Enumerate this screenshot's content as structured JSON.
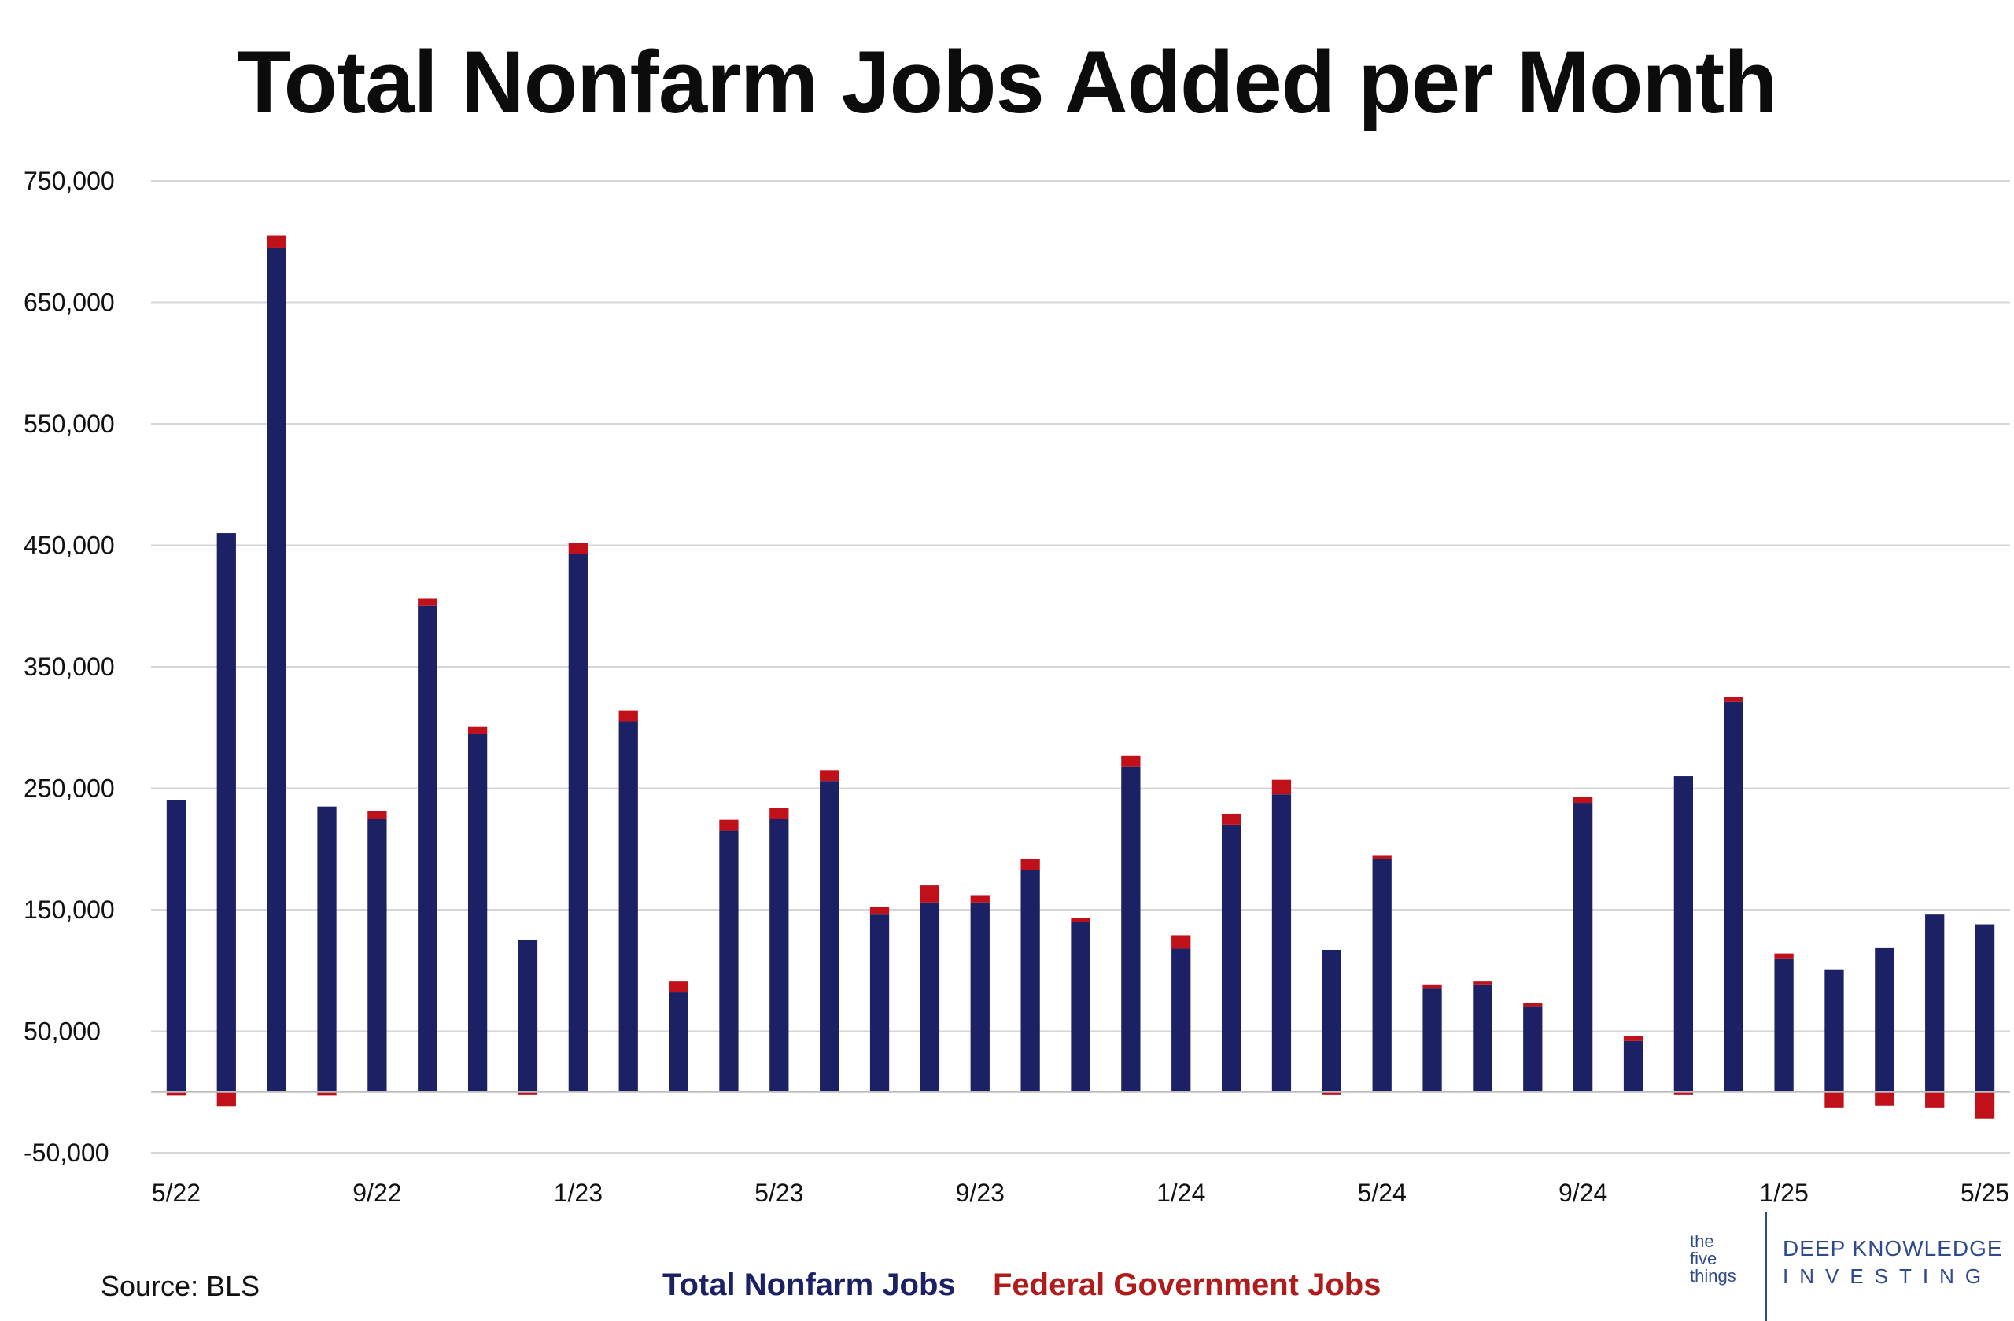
{
  "title": "Total Nonfarm Jobs Added per Month",
  "source": "Source: BLS",
  "legend": {
    "total": "Total Nonfarm Jobs",
    "federal": "Federal Government Jobs"
  },
  "branding": {
    "left_lines": [
      "the",
      "five",
      "things"
    ],
    "right_line1": "DEEP KNOWLEDGE",
    "right_line2": "INVESTING"
  },
  "colors": {
    "total": "#1b2164",
    "federal": "#c0101a",
    "grid": "#d6d6d6",
    "axis": "#bdbdbd"
  },
  "chart_data": {
    "type": "bar",
    "stacked": true,
    "title": "Total Nonfarm Jobs Added per Month",
    "xlabel": "",
    "ylabel": "",
    "ylim": [
      -50000,
      750000
    ],
    "yticks": [
      -50000,
      50000,
      150000,
      250000,
      350000,
      450000,
      550000,
      650000,
      750000
    ],
    "ytick_labels": [
      "-50,000",
      "50,000",
      "150,000",
      "250,000",
      "350,000",
      "450,000",
      "550,000",
      "650,000",
      "750,000"
    ],
    "grid": true,
    "legend_position": "bottom-center",
    "categories": [
      "5/22",
      "6/22",
      "7/22",
      "8/22",
      "9/22",
      "10/22",
      "11/22",
      "12/22",
      "1/23",
      "2/23",
      "3/23",
      "4/23",
      "5/23",
      "6/23",
      "7/23",
      "8/23",
      "9/23",
      "10/23",
      "11/23",
      "12/23",
      "1/24",
      "2/24",
      "3/24",
      "4/24",
      "5/24",
      "6/24",
      "7/24",
      "8/24",
      "9/24",
      "10/24",
      "11/24",
      "12/24",
      "1/25",
      "2/25",
      "3/25",
      "4/25",
      "5/25"
    ],
    "x_tick_labels": [
      "5/22",
      "9/22",
      "1/23",
      "5/23",
      "9/23",
      "1/24",
      "5/24",
      "9/24",
      "1/25",
      "5/25"
    ],
    "series": [
      {
        "name": "Total Nonfarm Jobs",
        "values": [
          240000,
          460000,
          695000,
          235000,
          225000,
          400000,
          295000,
          125000,
          443000,
          305000,
          82000,
          215000,
          225000,
          256000,
          146000,
          156000,
          156000,
          183000,
          140000,
          268000,
          118000,
          220000,
          245000,
          117000,
          192000,
          85000,
          88000,
          70000,
          238000,
          42000,
          260000,
          321000,
          110000,
          101000,
          119000,
          146000,
          138000
        ]
      },
      {
        "name": "Federal Government Jobs",
        "values": [
          -3000,
          -12000,
          10000,
          -3000,
          6000,
          6000,
          6000,
          -2000,
          9000,
          9000,
          9000,
          9000,
          9000,
          9000,
          6000,
          14000,
          6000,
          9000,
          3000,
          9000,
          11000,
          9000,
          12000,
          -2000,
          3000,
          3000,
          3000,
          3000,
          5000,
          4000,
          -2000,
          4000,
          4000,
          -13000,
          -11000,
          -13000,
          -22000
        ]
      }
    ]
  }
}
